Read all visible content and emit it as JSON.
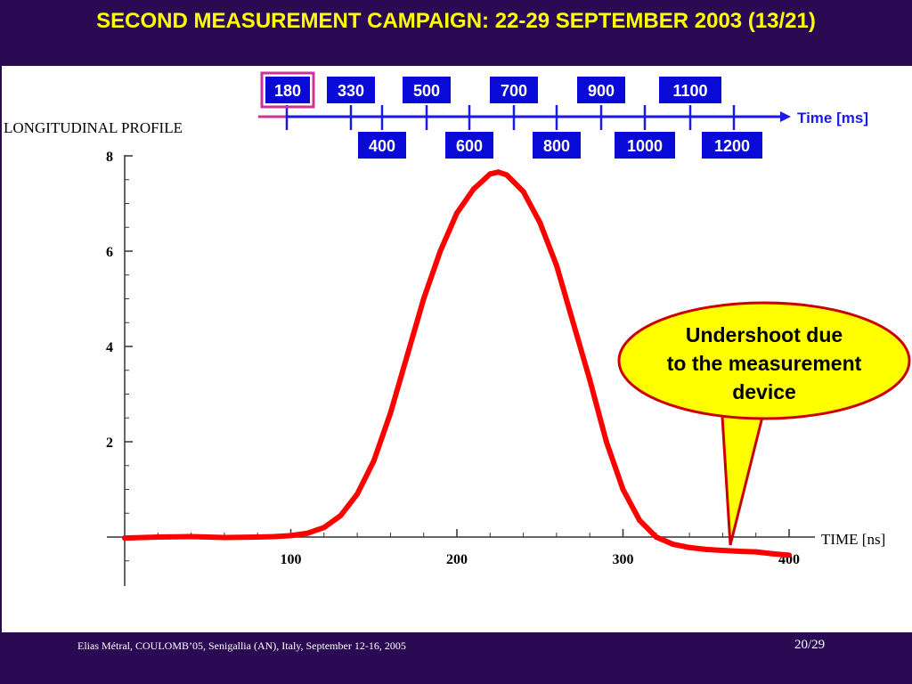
{
  "slide": {
    "title": "SECOND MEASUREMENT CAMPAIGN: 22-29 SEPTEMBER 2003 (13/21)",
    "footer": "Elias Métral, COULOMB’05, Senigallia (AN), Italy, September 12-16, 2005",
    "page": "20/29"
  },
  "timeline": {
    "label": "Time [ms]",
    "top_labels": [
      "180",
      "330",
      "500",
      "700",
      "900",
      "1100"
    ],
    "bottom_labels": [
      "400",
      "600",
      "800",
      "1000",
      "1200"
    ],
    "selected": "180"
  },
  "callout": {
    "lines": [
      "Undershoot due",
      "to the measurement",
      "device"
    ]
  },
  "colors": {
    "header_bg": "#2a0a52",
    "title": "#ffff00",
    "timeline": "#1a1ae6",
    "selected_frame": "#cc3399",
    "curve": "#ff0000",
    "callout_fill": "#ffff00",
    "callout_border": "#cc0000"
  },
  "chart_data": {
    "type": "line",
    "title": "LONGITUDINAL  PROFILE",
    "xlabel": "TIME  [ns]",
    "ylabel": "",
    "xlim": [
      0,
      400
    ],
    "ylim": [
      -1,
      8
    ],
    "x_ticks": [
      100,
      200,
      300,
      400
    ],
    "y_ticks": [
      2,
      4,
      6,
      8
    ],
    "x_tick_labels": [
      "100",
      "200",
      "300",
      "400"
    ],
    "y_tick_labels": [
      "2",
      "4",
      "6",
      "8"
    ],
    "grid": false,
    "series": [
      {
        "x": [
          0,
          20,
          40,
          60,
          80,
          90,
          100,
          110,
          120,
          130,
          140,
          150,
          160,
          170,
          180,
          190,
          200,
          210,
          220,
          225,
          230,
          240,
          250,
          260,
          270,
          280,
          290,
          300,
          310,
          320,
          330,
          340,
          350,
          360,
          370,
          380,
          390,
          400
        ],
        "values": [
          -0.02,
          0.0,
          0.01,
          -0.01,
          0.0,
          0.01,
          0.03,
          0.08,
          0.2,
          0.45,
          0.9,
          1.6,
          2.6,
          3.8,
          5.0,
          6.0,
          6.8,
          7.3,
          7.62,
          7.66,
          7.6,
          7.25,
          6.6,
          5.7,
          4.5,
          3.3,
          2.0,
          1.0,
          0.35,
          0.0,
          -0.15,
          -0.22,
          -0.26,
          -0.28,
          -0.3,
          -0.31,
          -0.35,
          -0.38
        ]
      }
    ]
  }
}
